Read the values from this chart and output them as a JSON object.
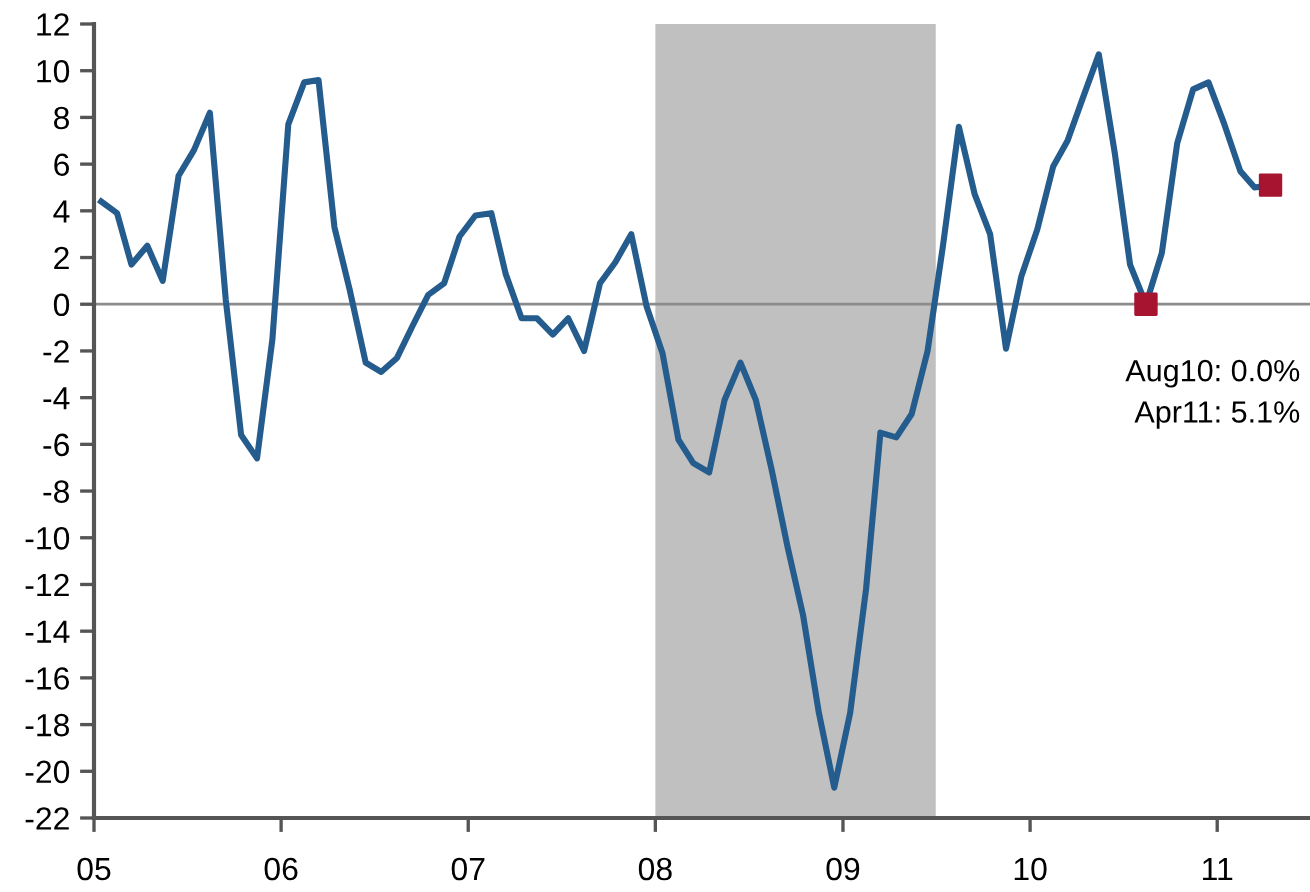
{
  "chart_data": {
    "type": "line",
    "x": [
      "2005-01-15",
      "2005-02-15",
      "2005-03-15",
      "2005-04-15",
      "2005-05-15",
      "2005-06-15",
      "2005-07-15",
      "2005-08-15",
      "2005-09-15",
      "2005-10-15",
      "2005-11-15",
      "2005-12-15",
      "2006-01-15",
      "2006-02-15",
      "2006-03-15",
      "2006-04-15",
      "2006-05-15",
      "2006-06-15",
      "2006-07-15",
      "2006-08-15",
      "2006-09-15",
      "2006-10-15",
      "2006-11-15",
      "2006-12-15",
      "2007-01-15",
      "2007-02-15",
      "2007-03-15",
      "2007-04-15",
      "2007-05-15",
      "2007-06-15",
      "2007-07-15",
      "2007-08-15",
      "2007-09-15",
      "2007-10-15",
      "2007-11-15",
      "2007-12-15",
      "2008-01-15",
      "2008-02-15",
      "2008-03-15",
      "2008-04-15",
      "2008-05-15",
      "2008-06-15",
      "2008-07-15",
      "2008-08-15",
      "2008-09-15",
      "2008-10-15",
      "2008-11-15",
      "2008-12-15",
      "2009-01-15",
      "2009-02-15",
      "2009-03-15",
      "2009-04-15",
      "2009-05-15",
      "2009-06-15",
      "2009-07-15",
      "2009-08-15",
      "2009-09-15",
      "2009-10-15",
      "2009-11-15",
      "2009-12-15",
      "2010-01-15",
      "2010-02-15",
      "2010-03-15",
      "2010-04-15",
      "2010-05-15",
      "2010-06-15",
      "2010-07-15",
      "2010-08-15",
      "2010-09-15",
      "2010-10-15",
      "2010-11-15",
      "2010-12-15",
      "2011-01-15",
      "2011-02-15",
      "2011-03-15",
      "2011-04-15"
    ],
    "series": [
      {
        "color": "#255c8e",
        "values": [
          4.4,
          3.9,
          1.7,
          2.5,
          1.0,
          5.5,
          6.6,
          8.2,
          0.2,
          -5.6,
          -6.6,
          -1.5,
          7.7,
          9.5,
          9.6,
          3.3,
          0.6,
          -2.5,
          -2.9,
          -2.3,
          -0.9,
          0.4,
          0.9,
          2.9,
          3.8,
          3.9,
          1.3,
          -0.6,
          -0.6,
          -1.3,
          -0.6,
          -2.0,
          0.9,
          1.8,
          3.0,
          -0.1,
          -2.1,
          -5.8,
          -6.8,
          -7.2,
          -4.1,
          -2.5,
          -4.1,
          -7.1,
          -10.4,
          -13.3,
          -17.5,
          -20.7,
          -17.5,
          -12.2,
          -5.5,
          -5.7,
          -4.7,
          -2.0,
          2.5,
          7.6,
          4.7,
          3.0,
          -1.9,
          1.2,
          3.2,
          5.9,
          7.0,
          8.9,
          10.7,
          6.5,
          1.7,
          0.0,
          2.2,
          6.9,
          9.2,
          9.5,
          7.7,
          5.7,
          5.0,
          5.1
        ]
      },
      {
        "type": "scatter",
        "color": "#a6142f",
        "marker": "square",
        "x": [
          "2010-08-15",
          "2011-04-15"
        ],
        "values": [
          0.0,
          5.1
        ]
      }
    ],
    "xlim": [
      "2005-01-01",
      "2011-07-01"
    ],
    "xticks": [
      {
        "value": "2005-01-01",
        "label": "05"
      },
      {
        "value": "2006-01-01",
        "label": "06"
      },
      {
        "value": "2007-01-01",
        "label": "07"
      },
      {
        "value": "2008-01-01",
        "label": "08"
      },
      {
        "value": "2009-01-01",
        "label": "09"
      },
      {
        "value": "2010-01-01",
        "label": "10"
      },
      {
        "value": "2011-01-01",
        "label": "11"
      }
    ],
    "ylim": [
      -22,
      12
    ],
    "yticks": [
      -22,
      -20,
      -18,
      -16,
      -14,
      -12,
      -10,
      -8,
      -6,
      -4,
      -2,
      0,
      2,
      4,
      6,
      8,
      10,
      12
    ],
    "ref_lines": [
      {
        "axis": "y",
        "value": 0,
        "color": "#8c8c8c"
      }
    ],
    "bands": [
      {
        "axis": "x",
        "from": "2008-01-01",
        "to": "2009-07-01",
        "color": "#c0c0c0"
      }
    ],
    "annotations": [
      "Aug10: 0.0%",
      "Apr11: 5.1%"
    ],
    "grid": false
  }
}
